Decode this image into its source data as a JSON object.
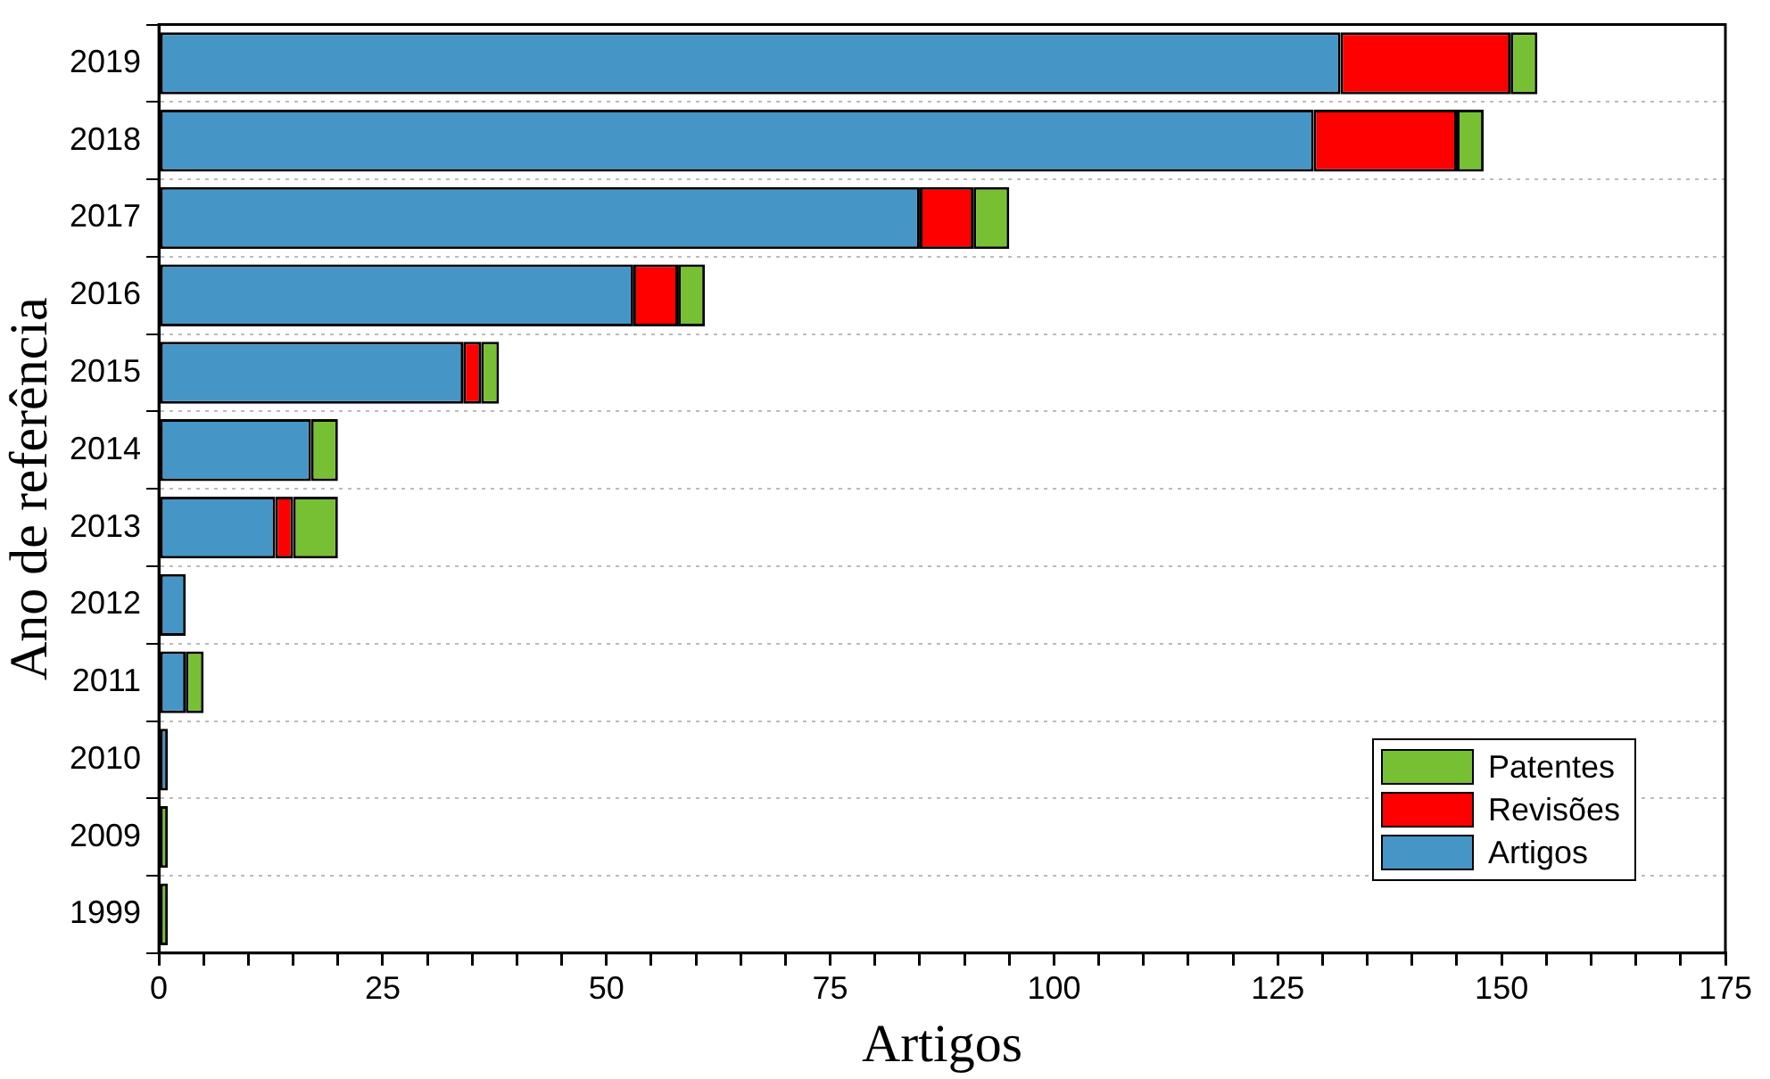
{
  "chart_data": {
    "type": "bar",
    "orientation": "horizontal",
    "stacked": true,
    "xlabel": "Artigos",
    "ylabel": "Ano de referência",
    "categories": [
      "2019",
      "2018",
      "2017",
      "2016",
      "2015",
      "2014",
      "2013",
      "2012",
      "2011",
      "2010",
      "2009",
      "1999"
    ],
    "series": [
      {
        "name": "Artigos",
        "color": "#4596c6",
        "values": [
          132,
          129,
          85,
          53,
          34,
          17,
          13,
          3,
          3,
          1,
          null,
          null
        ]
      },
      {
        "name": "Revisões",
        "color": "#ff0000",
        "values": [
          19,
          16,
          6,
          5,
          2,
          null,
          2,
          null,
          null,
          null,
          null,
          null
        ]
      },
      {
        "name": "Patentes",
        "color": "#77c034",
        "values": [
          3,
          3,
          4,
          3,
          2,
          3,
          5,
          null,
          2,
          null,
          1,
          1
        ]
      }
    ],
    "xlim": [
      0,
      175
    ],
    "xticks": [
      0,
      {
        "value": 5,
        "label": null
      },
      {
        "value": 10,
        "label": null
      },
      {
        "value": 15,
        "label": null
      },
      {
        "value": 20,
        "label": null
      },
      25,
      {
        "value": 30,
        "label": null
      },
      {
        "value": 35,
        "label": null
      },
      {
        "value": 40,
        "label": null
      },
      {
        "value": 45,
        "label": null
      },
      50,
      {
        "value": 55,
        "label": null
      },
      {
        "value": 60,
        "label": null
      },
      {
        "value": 65,
        "label": null
      },
      {
        "value": 70,
        "label": null
      },
      75,
      {
        "value": 80,
        "label": null
      },
      {
        "value": 85,
        "label": null
      },
      {
        "value": 90,
        "label": null
      },
      {
        "value": 95,
        "label": null
      },
      100,
      {
        "value": 105,
        "label": null
      },
      {
        "value": 110,
        "label": null
      },
      {
        "value": 115,
        "label": null
      },
      {
        "value": 120,
        "label": null
      },
      125,
      {
        "value": 130,
        "label": null
      },
      {
        "value": 135,
        "label": null
      },
      {
        "value": 140,
        "label": null
      },
      {
        "value": 145,
        "label": null
      },
      150,
      {
        "value": 155,
        "label": null
      },
      {
        "value": 160,
        "label": null
      },
      {
        "value": 165,
        "label": null
      },
      {
        "value": 170,
        "label": null
      },
      175
    ],
    "grid": "y",
    "legend": "bottom right"
  }
}
